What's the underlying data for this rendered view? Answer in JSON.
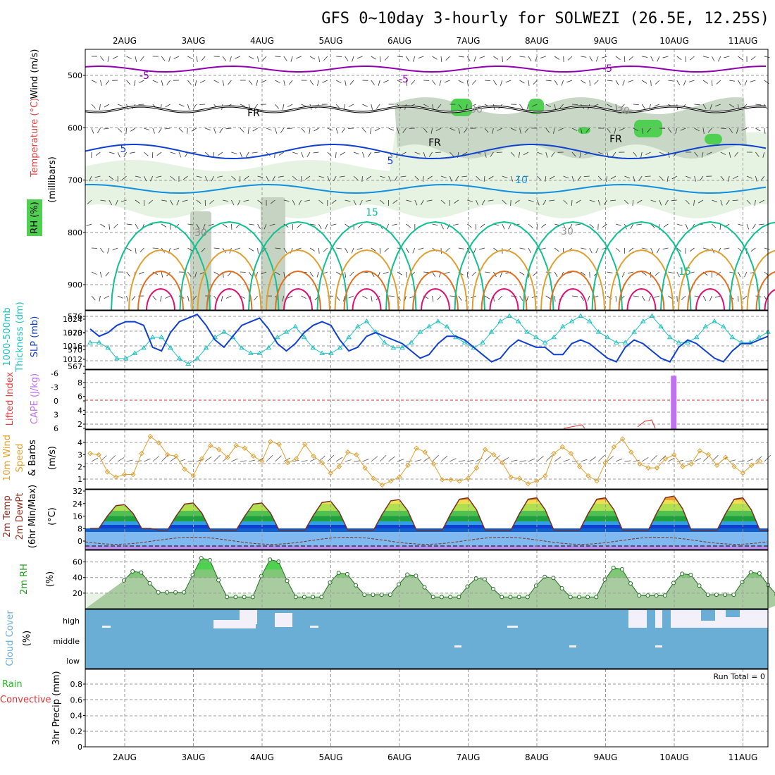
{
  "title": "GFS 0~10day 3-hourly for SOLWEZI (26.5E, 12.25S)",
  "days": [
    "2AUG",
    "3AUG",
    "4AUG",
    "5AUG",
    "6AUG",
    "7AUG",
    "8AUG",
    "9AUG",
    "10AUG",
    "11AUG"
  ],
  "colors": {
    "purple": "#9000b0",
    "black": "#000000",
    "blue": "#1040d0",
    "lightblue": "#1090e0",
    "teal": "#10c090",
    "orange": "#e0a030",
    "darkorange": "#e07020",
    "magenta": "#e01070",
    "rhgreen": "#50d050",
    "cyan": "#20c0c0",
    "cape": "#c070f0",
    "cloud": "#6aaed6"
  },
  "panels": {
    "upper": {
      "label_wind": "Wind (m/s)",
      "label_temp": "Temperature (°C)",
      "label_rh": "RH (%)",
      "label_mb": "(millibars)",
      "yticks": [
        "500",
        "600",
        "700",
        "800",
        "900"
      ],
      "contour_labels": [
        "-5",
        "-5",
        "-5",
        "FR",
        "FR",
        "FR",
        "5",
        "5",
        "10",
        "15",
        "15",
        "30",
        "30",
        "30",
        "30",
        "10"
      ]
    },
    "slp": {
      "left_labels": [
        "1000-500mb",
        "Thickness (dm)"
      ],
      "right_label": "SLP (mb)",
      "left_ticks": [
        "576",
        "573",
        "570",
        "567"
      ],
      "right_ticks": [
        "1024",
        "1020",
        "1016",
        "1012"
      ]
    },
    "cape": {
      "label_li": "Lifted Index",
      "label_cape": "CAPE (J/kg)",
      "li_ticks": [
        "-6",
        "-3",
        "0",
        "3",
        "6"
      ],
      "cape_ticks": [
        "8",
        "6",
        "4",
        "2"
      ]
    },
    "wind10": {
      "label1": "10m Wind",
      "label2": "Speed",
      "label3": "& Barbs",
      "unit": "(m/s)",
      "yticks": [
        "4",
        "3",
        "2",
        "1"
      ]
    },
    "temp2m": {
      "label1": "2m Temp",
      "label2": "2m DewPt",
      "label3": "(6hr Min/Max)",
      "unit": "(°C)",
      "yticks": [
        "32",
        "24",
        "16",
        "8",
        "0"
      ]
    },
    "rh2m": {
      "label": "2m RH",
      "unit": "(%)",
      "yticks": [
        "60",
        "40",
        "20"
      ]
    },
    "cloud": {
      "label": "Cloud Cover",
      "unit": "(%)",
      "yticks": [
        "high",
        "middle",
        "low"
      ]
    },
    "precip": {
      "label1": "Total / Rain",
      "label2": "Convective",
      "label3": "3hr Precip (mm)",
      "yticks": [
        "0.8",
        "0.6",
        "0.4",
        "0.2",
        "0"
      ],
      "run_total": "Run Total = 0"
    }
  },
  "chart_data": [
    {
      "type": "line",
      "name": "SLP / 1000-500mb Thickness",
      "x": [
        "1AUG18",
        "1AUG21",
        "2AUG00",
        "2AUG03",
        "2AUG06",
        "2AUG09",
        "2AUG12",
        "2AUG15",
        "2AUG18",
        "2AUG21",
        "3AUG00",
        "3AUG03",
        "3AUG06",
        "3AUG09",
        "3AUG12",
        "3AUG15",
        "3AUG18",
        "3AUG21",
        "4AUG00",
        "4AUG03",
        "4AUG06",
        "4AUG09",
        "4AUG12",
        "4AUG15",
        "4AUG18",
        "4AUG21",
        "5AUG00",
        "5AUG03",
        "5AUG06",
        "5AUG09",
        "5AUG12",
        "5AUG15",
        "5AUG18",
        "5AUG21",
        "6AUG00",
        "6AUG03",
        "6AUG06",
        "6AUG09",
        "6AUG12",
        "6AUG15",
        "6AUG18",
        "6AUG21",
        "7AUG00",
        "7AUG03",
        "7AUG06",
        "7AUG09",
        "7AUG12",
        "7AUG15",
        "7AUG18",
        "7AUG21",
        "8AUG00",
        "8AUG03",
        "8AUG06",
        "8AUG09",
        "8AUG12",
        "8AUG15",
        "8AUG18",
        "8AUG21",
        "9AUG00",
        "9AUG03",
        "9AUG06",
        "9AUG09",
        "9AUG12",
        "9AUG15",
        "9AUG18",
        "9AUG21",
        "10AUG00",
        "10AUG03",
        "10AUG06",
        "10AUG09",
        "10AUG12",
        "10AUG15",
        "10AUG18",
        "10AUG21",
        "11AUG00",
        "11AUG03",
        "11AUG06"
      ],
      "series": [
        {
          "name": "SLP (mb)",
          "values": [
            1020,
            1018,
            1019,
            1021,
            1022,
            1022,
            1021,
            1015,
            1014,
            1019,
            1022,
            1023,
            1024,
            1021,
            1017,
            1015,
            1018,
            1021,
            1022,
            1023,
            1020,
            1016,
            1014,
            1016,
            1019,
            1021,
            1022,
            1021,
            1017,
            1014,
            1015,
            1018,
            1019,
            1018,
            1017,
            1016,
            1014,
            1012,
            1013,
            1016,
            1018,
            1018,
            1017,
            1015,
            1013,
            1011,
            1012,
            1015,
            1017,
            1016,
            1015,
            1015,
            1013,
            1013,
            1016,
            1017,
            1016,
            1014,
            1012,
            1011,
            1015,
            1017,
            1016,
            1014,
            1012,
            1011,
            1015,
            1017,
            1016,
            1014,
            1012,
            1011,
            1014,
            1016,
            1016,
            1017,
            1018
          ]
        },
        {
          "name": "1000-500mb Thickness (dm)",
          "values": [
            571,
            571,
            570,
            568,
            568,
            569,
            570,
            572,
            572,
            570,
            568,
            567,
            568,
            570,
            572,
            573,
            572,
            570,
            569,
            569,
            570,
            572,
            573,
            574,
            572,
            570,
            569,
            569,
            570,
            572,
            574,
            575,
            573,
            571,
            570,
            570,
            571,
            573,
            574,
            575,
            574,
            572,
            571,
            570,
            571,
            573,
            575,
            576,
            575,
            573,
            572,
            571,
            572,
            574,
            575,
            576,
            575,
            573,
            572,
            571,
            571,
            573,
            575,
            576,
            574,
            572,
            571,
            571,
            572,
            574,
            575,
            574,
            572,
            571,
            571,
            572,
            573
          ]
        }
      ],
      "ylim_left": [
        566,
        577
      ],
      "ylim_right": [
        1009,
        1025
      ]
    },
    {
      "type": "bar",
      "name": "CAPE / Lifted Index",
      "x_day": [
        9.5
      ],
      "cape_values": [
        9
      ],
      "ylim": [
        0,
        10
      ]
    },
    {
      "type": "line",
      "name": "10m Wind Speed",
      "x_hours_from_start": [
        0,
        3,
        6,
        9,
        12,
        15,
        18,
        21,
        24,
        27,
        30,
        33,
        36,
        39,
        42,
        45,
        48,
        51,
        54,
        57,
        60,
        63,
        66,
        69,
        72,
        75,
        78,
        81,
        84,
        87,
        90,
        93,
        96,
        99,
        102,
        105,
        108,
        111,
        114,
        117,
        120,
        123,
        126,
        129,
        132,
        135,
        138,
        141,
        144,
        147,
        150,
        153,
        156,
        159,
        162,
        165,
        168,
        171,
        174,
        177,
        180,
        183,
        186,
        189,
        192,
        195,
        198,
        201,
        204,
        207,
        210,
        213,
        216,
        219,
        222,
        225,
        228,
        231,
        234
      ],
      "values": [
        3.2,
        3.1,
        1.8,
        1.4,
        1.6,
        1.6,
        3.2,
        4.5,
        4.0,
        3.1,
        3.0,
        2.0,
        1.5,
        2.8,
        3.8,
        3.5,
        2.9,
        3.8,
        3.6,
        3.0,
        2.6,
        4.1,
        3.9,
        2.5,
        2.8,
        3.9,
        3.0,
        2.5,
        1.7,
        2.2,
        3.3,
        3.1,
        2.1,
        1.3,
        0.8,
        1.1,
        1.4,
        2.3,
        3.6,
        3.3,
        2.4,
        1.2,
        1.2,
        1.1,
        1.3,
        2.1,
        3.5,
        3.1,
        2.5,
        1.4,
        1.3,
        0.9,
        1.1,
        1.5,
        3.2,
        3.7,
        3.2,
        2.2,
        1.5,
        1.1,
        2.5,
        3.7,
        4.3,
        3.3,
        2.4,
        2.1,
        2.1,
        2.8,
        3.1,
        2.2,
        2.4,
        3.4,
        3.1,
        2.3,
        2.9,
        2.2,
        1.7,
        2.3,
        2.6
      ],
      "ylim": [
        0.5,
        5
      ]
    },
    {
      "type": "area",
      "name": "2m Temperature",
      "daily_max": [
        24,
        25,
        25,
        26,
        27,
        28,
        28,
        28,
        29,
        28
      ],
      "daily_min": [
        10,
        9,
        9,
        9,
        9,
        9,
        9,
        9,
        9,
        9
      ],
      "dewpoint_range": [
        1,
        5
      ],
      "ylim": [
        -2,
        32
      ]
    },
    {
      "type": "area",
      "name": "2m RH",
      "daily_max": [
        49,
        67,
        65,
        47,
        45,
        40,
        42,
        54,
        46,
        48
      ],
      "daily_min": [
        21,
        15,
        15,
        18,
        15,
        15,
        15,
        17,
        18,
        18
      ],
      "ylim": [
        0,
        75
      ]
    },
    {
      "type": "heatmap",
      "name": "Cloud Cover",
      "levels": [
        "high",
        "middle",
        "low"
      ],
      "ylim": [
        0,
        100
      ]
    },
    {
      "type": "bar",
      "name": "3hr Precip",
      "values": [],
      "ylim": [
        0,
        0.9
      ],
      "run_total": 0
    }
  ]
}
